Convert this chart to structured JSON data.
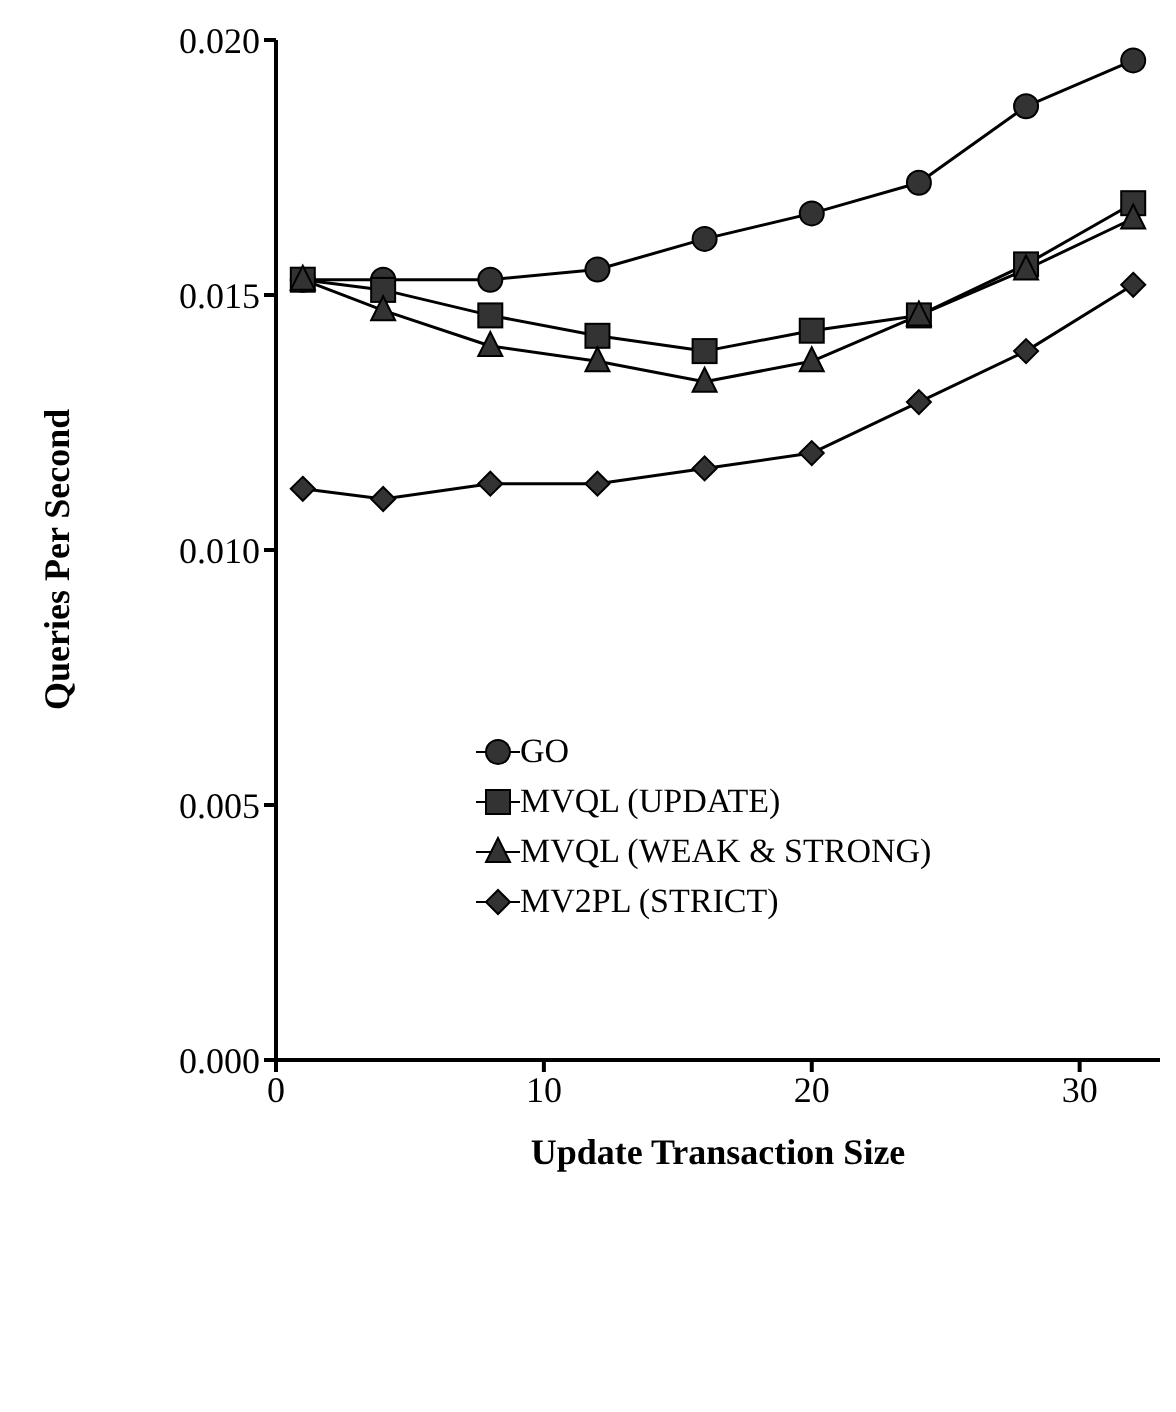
{
  "chart_data": {
    "type": "line",
    "xlabel": "Update Transaction Size",
    "ylabel": "Queries Per Second",
    "x": [
      1,
      4,
      8,
      12,
      16,
      20,
      24,
      28,
      32
    ],
    "xlim": [
      0,
      33
    ],
    "xticks": [
      0,
      10,
      20,
      30
    ],
    "ylim": [
      0,
      0.02
    ],
    "yticks": [
      {
        "value": 0,
        "label": "0.000"
      },
      {
        "value": 0.005,
        "label": "0.005"
      },
      {
        "value": 0.01,
        "label": "0.010"
      },
      {
        "value": 0.015,
        "label": "0.015"
      },
      {
        "value": 0.02,
        "label": "0.020"
      }
    ],
    "grid": false,
    "legend": "left",
    "line_style": "solid",
    "series": [
      {
        "name": "GO",
        "color": "#333333",
        "marker": "circle",
        "values": [
          0.0153,
          0.0153,
          0.0153,
          0.0155,
          0.0161,
          0.0166,
          0.0172,
          0.0187,
          0.0196
        ]
      },
      {
        "name": "MVQL (UPDATE)",
        "color": "#333333",
        "marker": "square",
        "values": [
          0.0153,
          0.0151,
          0.0146,
          0.0142,
          0.0139,
          0.0143,
          0.0146,
          0.0156,
          0.0168
        ]
      },
      {
        "name": "MVQL (WEAK & STRONG)",
        "color": "#333333",
        "marker": "triangle",
        "values": [
          0.0153,
          0.0147,
          0.014,
          0.0137,
          0.0133,
          0.0137,
          0.0146,
          0.0155,
          0.0165
        ]
      },
      {
        "name": "MV2PL (STRICT)",
        "color": "#333333",
        "marker": "diamond",
        "values": [
          0.0112,
          0.011,
          0.0113,
          0.0113,
          0.0116,
          0.0119,
          0.0129,
          0.0139,
          0.0152
        ]
      }
    ]
  }
}
